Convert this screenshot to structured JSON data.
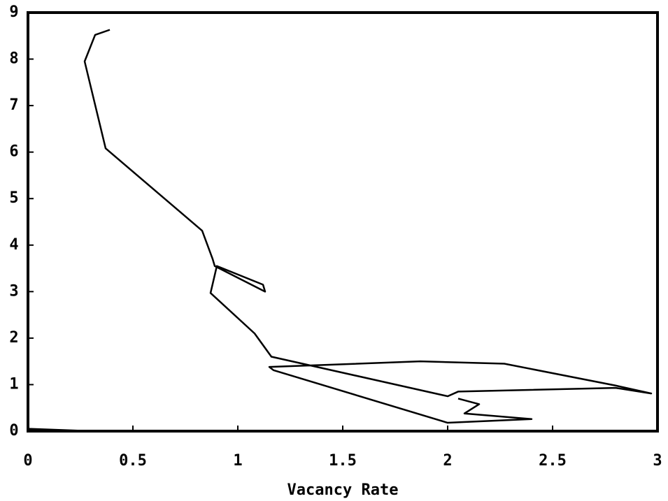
{
  "chart_data": {
    "type": "line",
    "x_label": "Vacancy Rate",
    "xlim": [
      0,
      3
    ],
    "xticks": [
      0,
      0.5,
      1,
      1.5,
      2,
      2.5,
      3
    ],
    "ylim": [
      0,
      9
    ],
    "yticks": [
      0,
      1,
      2,
      3,
      4,
      5,
      6,
      7,
      8,
      9
    ],
    "series": [
      {
        "color": "#000000",
        "x": [
          0.39,
          0.32,
          0.27,
          0.37,
          0.83,
          0.88,
          0.89,
          1.13,
          1.12,
          0.9,
          0.87,
          1.08,
          1.16,
          2.0,
          2.05,
          2.8,
          2.97,
          2.8,
          2.27,
          1.87,
          1.15,
          1.17,
          2.0,
          2.4,
          2.08,
          2.15,
          2.05
        ],
        "values": [
          8.63,
          8.52,
          7.95,
          6.08,
          4.31,
          3.7,
          3.55,
          3.0,
          3.15,
          3.55,
          2.97,
          2.1,
          1.6,
          0.75,
          0.85,
          0.93,
          0.81,
          0.98,
          1.45,
          1.5,
          1.38,
          1.31,
          0.18,
          0.26,
          0.38,
          0.58,
          0.7
        ]
      },
      {
        "color": "#000000",
        "x": [
          0,
          0.3
        ],
        "values": [
          0.05,
          0
        ]
      }
    ]
  }
}
